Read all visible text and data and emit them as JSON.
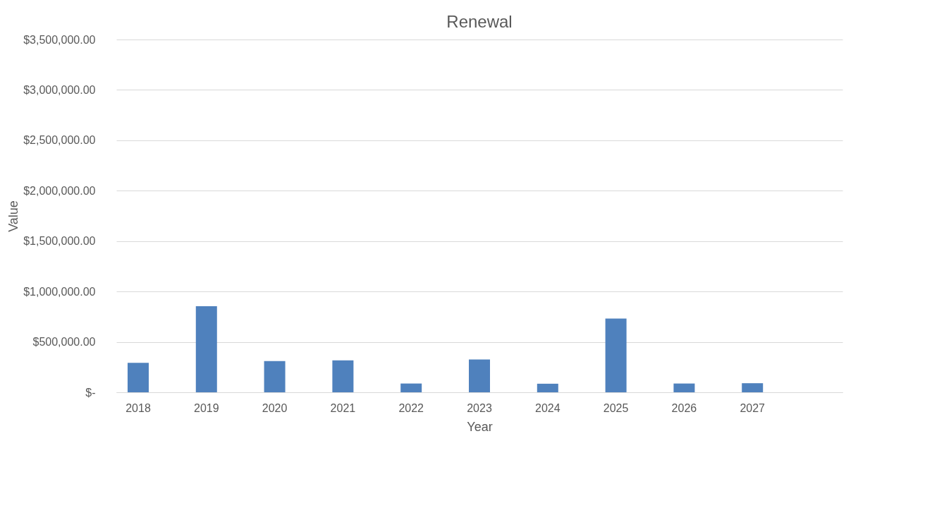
{
  "chart_data": {
    "type": "bar",
    "title": "Renewal",
    "xlabel": "Year",
    "ylabel": "Value",
    "categories": [
      "2018",
      "2019",
      "2020",
      "2021",
      "2022",
      "2023",
      "2024",
      "2025",
      "2026",
      "2027",
      null
    ],
    "series": [
      {
        "color": "#4f81bd",
        "values": [
          293000,
          854000,
          310000,
          317000,
          87000,
          325000,
          85000,
          731000,
          87000,
          90000,
          null
        ]
      }
    ],
    "ylim": [
      0,
      3500000
    ],
    "yticks": [
      {
        "value": 0,
        "label": "$-"
      },
      {
        "value": 500000,
        "label": "$500,000.00"
      },
      {
        "value": 1000000,
        "label": "$1,000,000.00"
      },
      {
        "value": 1500000,
        "label": "$1,500,000.00"
      },
      {
        "value": 2000000,
        "label": "$2,000,000.00"
      },
      {
        "value": 2500000,
        "label": "$2,500,000.00"
      },
      {
        "value": 3000000,
        "label": "$3,000,000.00"
      },
      {
        "value": 3500000,
        "label": "$3,500,000.00"
      }
    ],
    "grid": "y",
    "legend": false
  }
}
